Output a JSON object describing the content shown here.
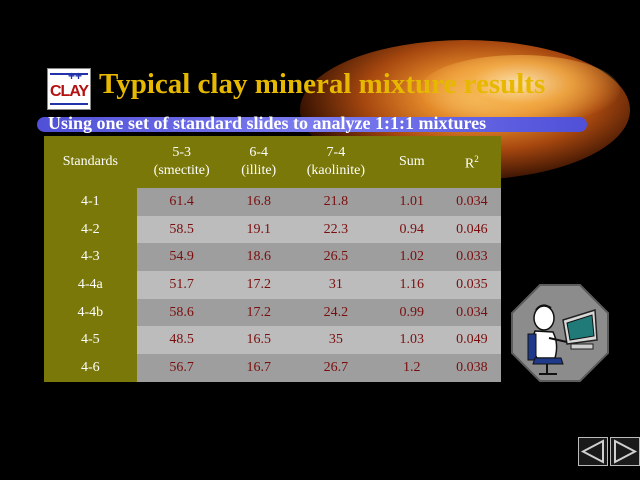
{
  "slide": {
    "title": "Typical clay mineral mixture results",
    "subtitle": "Using one set of standard slides to analyze 1:1:1 mixtures",
    "logo_text": "CLAY",
    "logo_plus": "++"
  },
  "table": {
    "headers": {
      "standards": "Standards",
      "c1_line1": "5-3",
      "c1_line2": "(smectite)",
      "c2_line1": "6-4",
      "c2_line2": "(illite)",
      "c3_line1": "7-4",
      "c3_line2": "(kaolinite)",
      "sum": "Sum",
      "r2_base": "R",
      "r2_sup": "2"
    },
    "rows": [
      [
        "4-1",
        "61.4",
        "16.8",
        "21.8",
        "1.01",
        "0.034"
      ],
      [
        "4-2",
        "58.5",
        "19.1",
        "22.3",
        "0.94",
        "0.046"
      ],
      [
        "4-3",
        "54.9",
        "18.6",
        "26.5",
        "1.02",
        "0.033"
      ],
      [
        "4-4a",
        "51.7",
        "17.2",
        "31",
        "1.16",
        "0.035"
      ],
      [
        "4-4b",
        "58.6",
        "17.2",
        "24.2",
        "0.99",
        "0.034"
      ],
      [
        "4-5",
        "48.5",
        "16.5",
        "35",
        "1.03",
        "0.049"
      ],
      [
        "4-6",
        "56.7",
        "16.7",
        "26.7",
        "1.2",
        "0.038"
      ]
    ]
  },
  "icons": {
    "logo": "clay-logo-icon",
    "computer_user": "computer-user-icon",
    "prev": "back-arrow-icon",
    "next": "forward-arrow-icon"
  },
  "colors": {
    "title": "#e6b800",
    "header_bg": "#7a7808",
    "cell_text": "#7a0e0e",
    "subtitle_bar": "#6a6ae8"
  }
}
